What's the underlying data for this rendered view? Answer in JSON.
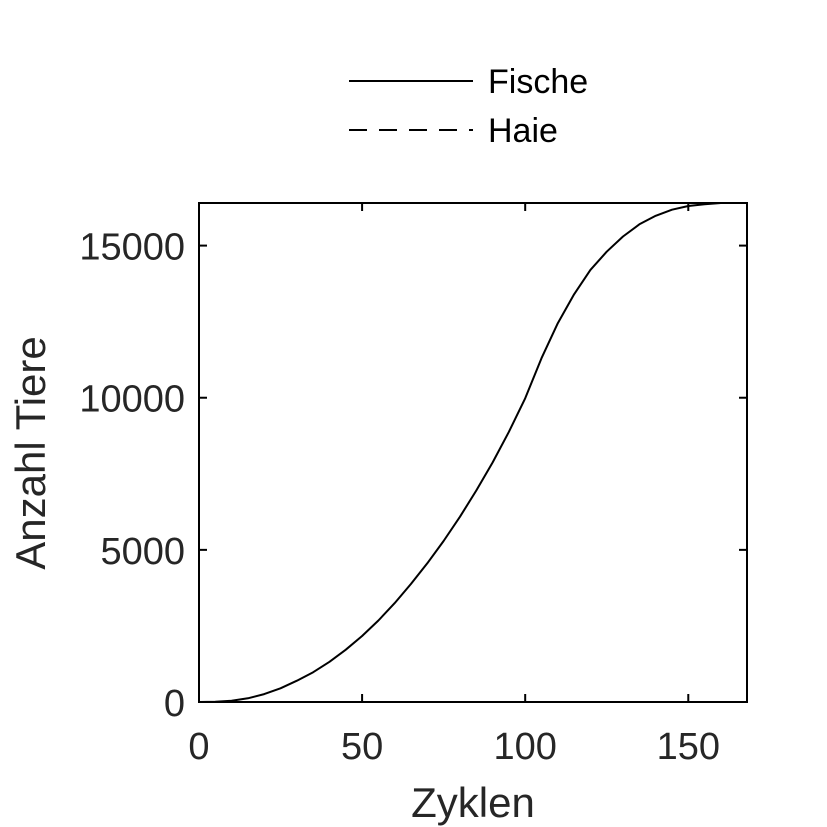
{
  "chart_data": {
    "type": "line",
    "title": "",
    "xlabel": "Zyklen",
    "ylabel": "Anzahl Tiere",
    "xlim": [
      0,
      168
    ],
    "ylim": [
      0,
      16400
    ],
    "xticks": [
      0,
      50,
      100,
      150
    ],
    "yticks": [
      0,
      5000,
      10000,
      15000
    ],
    "xtick_labels": [
      "0",
      "50",
      "100",
      "150"
    ],
    "ytick_labels": [
      "0",
      "5000",
      "10000",
      "15000"
    ],
    "grid": false,
    "legend_position": "above plot, center",
    "series": [
      {
        "name": "Fische",
        "style": "solid",
        "color": "#000000",
        "x": [
          0,
          5,
          10,
          15,
          20,
          25,
          30,
          35,
          40,
          45,
          50,
          55,
          60,
          65,
          70,
          75,
          80,
          85,
          90,
          95,
          100,
          105,
          110,
          115,
          120,
          125,
          130,
          135,
          140,
          145,
          150,
          155,
          160,
          165,
          168
        ],
        "y": [
          0,
          10,
          40,
          120,
          260,
          450,
          700,
          980,
          1320,
          1720,
          2170,
          2680,
          3250,
          3880,
          4560,
          5290,
          6090,
          6950,
          7870,
          8880,
          9980,
          11300,
          12450,
          13400,
          14200,
          14800,
          15300,
          15700,
          15980,
          16180,
          16300,
          16360,
          16400,
          16400,
          16400
        ]
      },
      {
        "name": "Haie",
        "style": "dashed",
        "color": "#000000",
        "x": [
          0,
          168
        ],
        "y": [
          0,
          0
        ]
      }
    ]
  }
}
